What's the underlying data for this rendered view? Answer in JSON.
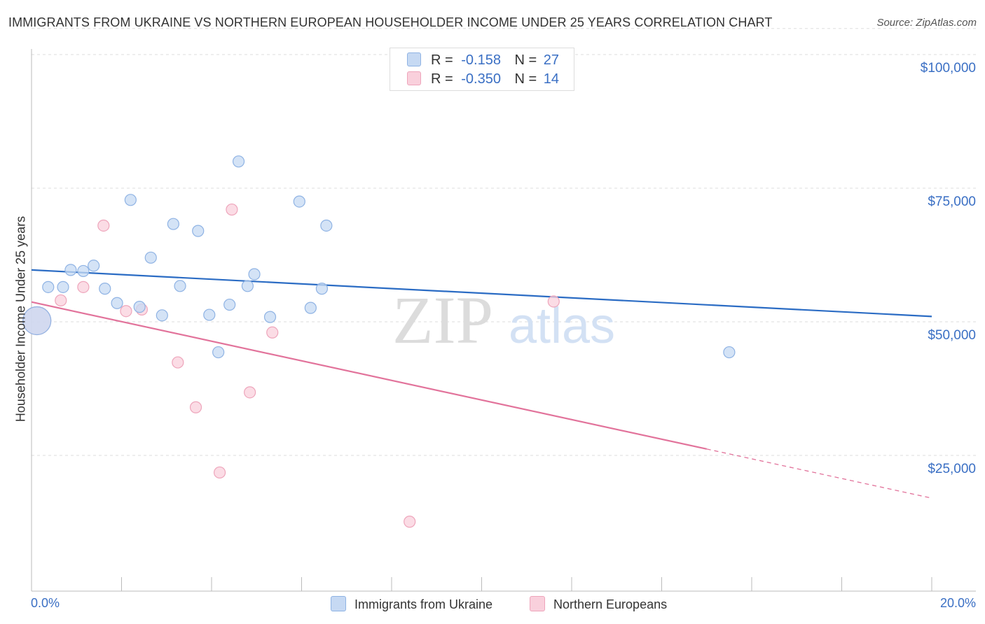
{
  "header": {
    "title": "IMMIGRANTS FROM UKRAINE VS NORTHERN EUROPEAN HOUSEHOLDER INCOME UNDER 25 YEARS CORRELATION CHART",
    "source": "Source: ZipAtlas.com"
  },
  "watermark": {
    "zip": "ZIP",
    "atlas": "atlas"
  },
  "legend": {
    "series1": {
      "r_label": "R =",
      "r_value": "-0.158",
      "n_label": "N =",
      "n_value": "27"
    },
    "series2": {
      "r_label": "R =",
      "r_value": "-0.350",
      "n_label": "N =",
      "n_value": "14"
    }
  },
  "colors": {
    "blue_fill": "#c6d9f3",
    "blue_stroke": "#8fb3e4",
    "blue_line": "#2b6cc4",
    "pink_fill": "#f9d0dc",
    "pink_stroke": "#eea5bb",
    "pink_line": "#e2739b",
    "axis_text": "#3a6fc4",
    "grid": "#dddddd"
  },
  "chart_data": {
    "type": "scatter",
    "title": "IMMIGRANTS FROM UKRAINE VS NORTHERN EUROPEAN HOUSEHOLDER INCOME UNDER 25 YEARS CORRELATION CHART",
    "xlabel": "",
    "ylabel": "Householder Income Under 25 years",
    "xlim": [
      0,
      20
    ],
    "ylim": [
      0,
      105000
    ],
    "x_ticks": [
      "0.0%",
      "20.0%"
    ],
    "y_ticks": [
      {
        "value": 25000,
        "label": "$25,000"
      },
      {
        "value": 50000,
        "label": "$50,000"
      },
      {
        "value": 75000,
        "label": "$75,000"
      },
      {
        "value": 100000,
        "label": "$100,000"
      }
    ],
    "series": [
      {
        "name": "Immigrants from Ukraine",
        "color": "blue",
        "points": [
          [
            0.12,
            50200,
            "large"
          ],
          [
            0.37,
            56500
          ],
          [
            0.7,
            56500
          ],
          [
            0.87,
            59700
          ],
          [
            1.15,
            59500
          ],
          [
            1.38,
            60500
          ],
          [
            1.63,
            56200
          ],
          [
            1.9,
            53500
          ],
          [
            2.2,
            72800
          ],
          [
            2.4,
            52800
          ],
          [
            2.65,
            62000
          ],
          [
            2.9,
            51200
          ],
          [
            3.15,
            68300
          ],
          [
            3.3,
            56700
          ],
          [
            3.7,
            67000
          ],
          [
            3.95,
            51300
          ],
          [
            4.15,
            44300
          ],
          [
            4.4,
            53200
          ],
          [
            4.6,
            80000
          ],
          [
            4.8,
            56700
          ],
          [
            4.95,
            58900
          ],
          [
            5.3,
            50900
          ],
          [
            5.95,
            72500
          ],
          [
            6.2,
            52600
          ],
          [
            6.45,
            56200
          ],
          [
            6.55,
            68000
          ],
          [
            15.5,
            44300
          ]
        ],
        "trend": {
          "x": [
            0,
            20
          ],
          "y": [
            59700,
            51000
          ]
        }
      },
      {
        "name": "Northern Europeans",
        "color": "pink",
        "points": [
          [
            0.12,
            50200,
            "large"
          ],
          [
            0.65,
            54000
          ],
          [
            1.15,
            56500
          ],
          [
            1.6,
            68000
          ],
          [
            2.1,
            52000
          ],
          [
            2.45,
            52300
          ],
          [
            3.25,
            42400
          ],
          [
            3.65,
            34000
          ],
          [
            4.18,
            21800
          ],
          [
            4.45,
            71000
          ],
          [
            4.85,
            36800
          ],
          [
            5.35,
            48000
          ],
          [
            8.4,
            12600
          ],
          [
            11.6,
            53800
          ]
        ],
        "trend": {
          "x": [
            0,
            15
          ],
          "y": [
            53700,
            26200
          ]
        },
        "trend_dashed": {
          "x": [
            15,
            20
          ],
          "y": [
            26200,
            17000
          ]
        }
      }
    ]
  }
}
